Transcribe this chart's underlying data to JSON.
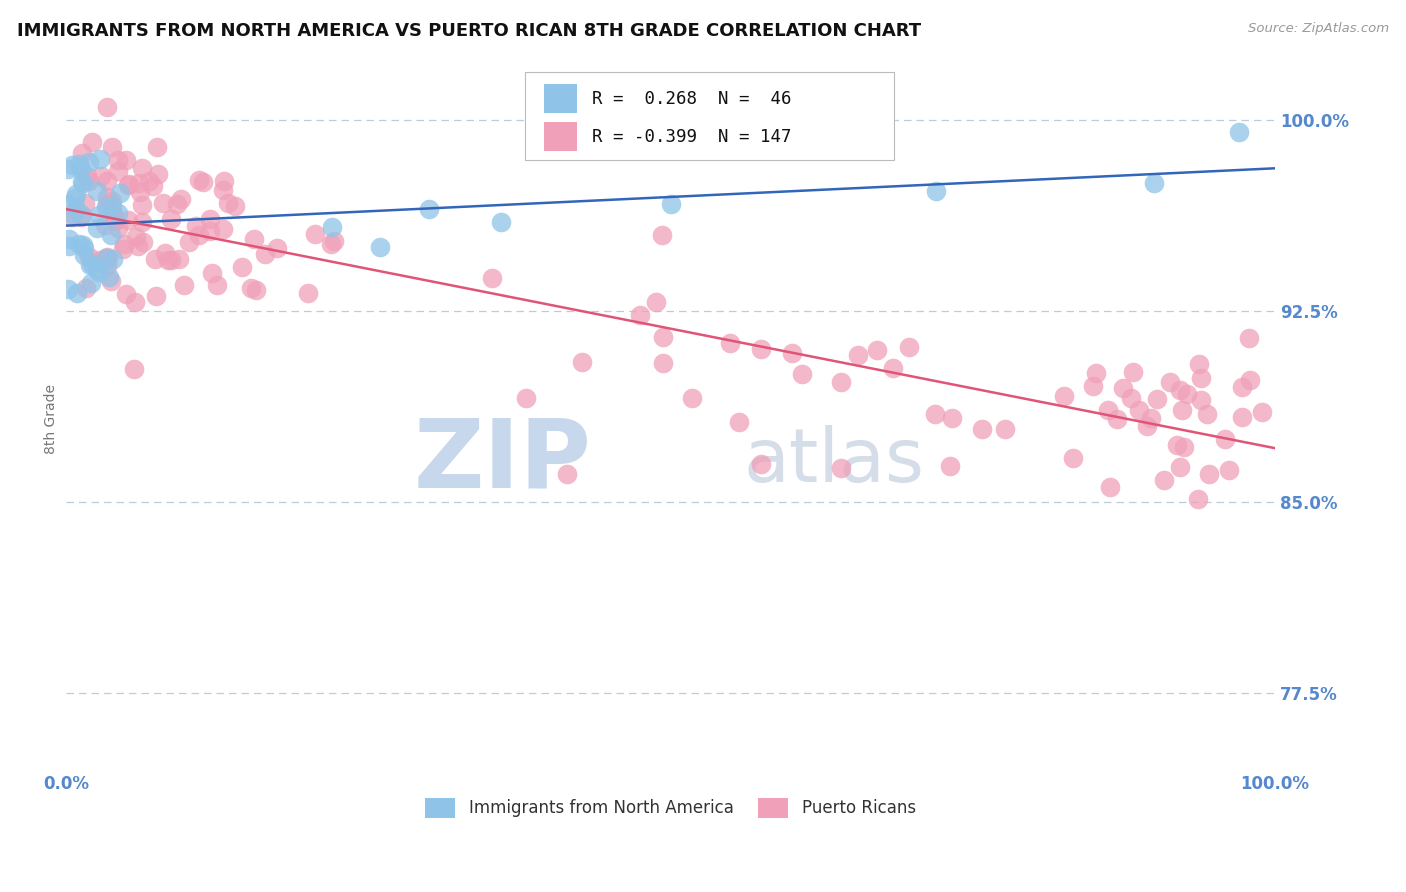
{
  "title": "IMMIGRANTS FROM NORTH AMERICA VS PUERTO RICAN 8TH GRADE CORRELATION CHART",
  "source": "Source: ZipAtlas.com",
  "ylabel": "8th Grade",
  "xlim": [
    0.0,
    1.0
  ],
  "ylim": [
    0.745,
    1.02
  ],
  "yticks": [
    0.775,
    0.85,
    0.925,
    1.0
  ],
  "xticks": [
    0.0,
    1.0
  ],
  "blue_color": "#8FC4E8",
  "pink_color": "#F0A0B8",
  "blue_line_color": "#3366BB",
  "pink_line_color": "#E05575",
  "legend_R_blue": "0.268",
  "legend_N_blue": "46",
  "legend_R_pink": "-0.399",
  "legend_N_pink": "147",
  "background_color": "#FFFFFF",
  "grid_color": "#BBCCDD",
  "tick_color": "#5588CC",
  "label_color": "#777777"
}
